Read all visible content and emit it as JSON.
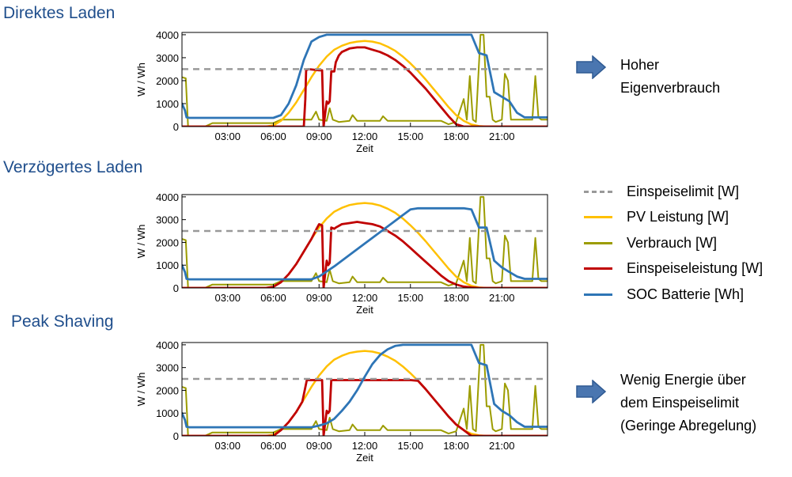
{
  "colors": {
    "limit": "#999999",
    "pv": "#ffc000",
    "consumption": "#9c9c00",
    "feed_in": "#c00000",
    "soc": "#2e75b6",
    "title": "#1f4e8c",
    "arrow": "#4a76b0"
  },
  "legend": [
    {
      "key": "limit",
      "label": "Einspeiselimit [W]",
      "style": "dashed"
    },
    {
      "key": "pv",
      "label": "PV Leistung [W]",
      "style": "solid"
    },
    {
      "key": "consumption",
      "label": "Verbrauch [W]",
      "style": "solid"
    },
    {
      "key": "feed_in",
      "label": "Einspeiseleistung [W]",
      "style": "solid"
    },
    {
      "key": "soc",
      "label": "SOC Batterie [Wh]",
      "style": "solid"
    }
  ],
  "notes": [
    {
      "lines": [
        "Hoher",
        "Eigenverbrauch"
      ],
      "icon": "arrow-right-icon"
    },
    {
      "lines": [
        "Wenig Energie über",
        "dem Einspeiselimit",
        "(Geringe Abregelung)"
      ],
      "icon": "arrow-right-icon"
    }
  ],
  "chart_data": [
    {
      "type": "line",
      "title": "Direktes Laden",
      "xlabel": "Zeit",
      "ylabel": "W / Wh",
      "xlim": [
        0,
        24
      ],
      "ylim": [
        0,
        4100
      ],
      "x_ticks": [
        "03:00",
        "06:00",
        "09:00",
        "12:00",
        "15:00",
        "18:00",
        "21:00"
      ],
      "y_ticks": [
        0,
        1000,
        2000,
        3000,
        4000
      ],
      "grid": false,
      "series": [
        {
          "name": "Einspeiselimit [W]",
          "key": "limit",
          "x": [
            0,
            24
          ],
          "y": [
            2500,
            2500
          ]
        },
        {
          "name": "PV Leistung [W]",
          "key": "pv",
          "x": [
            0,
            5.5,
            6.0,
            6.5,
            7.0,
            7.5,
            8.0,
            8.5,
            9.0,
            9.5,
            10.0,
            10.5,
            11.0,
            11.5,
            12.0,
            12.5,
            13.0,
            13.5,
            14.0,
            14.5,
            15.0,
            15.5,
            16.0,
            16.5,
            17.0,
            17.5,
            18.0,
            18.5,
            19.0,
            19.5,
            20.0,
            24
          ],
          "y": [
            0,
            0,
            50,
            250,
            600,
            1050,
            1600,
            2150,
            2650,
            3050,
            3350,
            3520,
            3640,
            3700,
            3730,
            3700,
            3620,
            3480,
            3300,
            3050,
            2750,
            2420,
            2050,
            1650,
            1250,
            850,
            500,
            250,
            90,
            20,
            0,
            0
          ]
        },
        {
          "name": "Verbrauch [W]",
          "key": "consumption",
          "x": [
            0,
            0.25,
            0.4,
            0.5,
            1.5,
            2.0,
            2.5,
            6.0,
            6.5,
            8.5,
            8.8,
            9.0,
            9.2,
            9.5,
            9.7,
            9.9,
            10.1,
            10.3,
            11.0,
            11.2,
            11.5,
            12.0,
            13.0,
            13.2,
            13.5,
            14.5,
            15.0,
            16.0,
            17.0,
            17.5,
            18.0,
            18.5,
            18.7,
            18.9,
            19.1,
            19.3,
            19.6,
            19.8,
            20.0,
            20.2,
            20.4,
            20.6,
            21.0,
            21.2,
            21.4,
            21.6,
            21.8,
            22.0,
            22.5,
            23.0,
            23.2,
            23.4,
            23.6,
            24
          ],
          "y": [
            2150,
            2100,
            0,
            0,
            0,
            150,
            150,
            150,
            300,
            300,
            650,
            300,
            280,
            250,
            800,
            300,
            250,
            200,
            250,
            500,
            250,
            250,
            250,
            450,
            250,
            250,
            250,
            250,
            250,
            100,
            200,
            1200,
            300,
            2200,
            300,
            200,
            4000,
            4000,
            1300,
            1300,
            300,
            200,
            300,
            2300,
            2000,
            300,
            300,
            300,
            300,
            300,
            2200,
            400,
            300,
            300
          ]
        },
        {
          "name": "Einspeiseleistung [W]",
          "key": "feed_in",
          "x": [
            0,
            8.0,
            8.1,
            8.15,
            8.3,
            9.0,
            9.2,
            9.3,
            9.5,
            9.6,
            9.7,
            9.8,
            10.0,
            10.1,
            10.3,
            10.5,
            11.0,
            11.5,
            12.0,
            12.5,
            13.0,
            13.5,
            14.0,
            14.5,
            15.0,
            15.5,
            16.0,
            16.5,
            17.0,
            17.5,
            18.0,
            18.5,
            24
          ],
          "y": [
            0,
            0,
            1200,
            2450,
            2500,
            2450,
            2450,
            0,
            1100,
            1000,
            1100,
            2400,
            2400,
            2800,
            3100,
            3250,
            3400,
            3450,
            3450,
            3350,
            3250,
            3100,
            2900,
            2650,
            2350,
            2000,
            1650,
            1250,
            850,
            450,
            100,
            0,
            0
          ]
        },
        {
          "name": "SOC Batterie [Wh]",
          "key": "soc",
          "x": [
            0,
            0.2,
            0.3,
            0.5,
            6.0,
            6.5,
            7.0,
            7.5,
            8.0,
            8.5,
            9.0,
            9.5,
            10.0,
            19.0,
            19.5,
            20.0,
            20.5,
            21.0,
            21.5,
            22.0,
            22.5,
            24
          ],
          "y": [
            1000,
            700,
            400,
            380,
            380,
            500,
            1000,
            1800,
            2900,
            3700,
            3900,
            4000,
            4000,
            4000,
            3200,
            3100,
            1500,
            1300,
            1100,
            600,
            400,
            400
          ]
        }
      ]
    },
    {
      "type": "line",
      "title": "Verzögertes Laden",
      "xlabel": "Zeit",
      "ylabel": "W / Wh",
      "xlim": [
        0,
        24
      ],
      "ylim": [
        0,
        4100
      ],
      "x_ticks": [
        "03:00",
        "06:00",
        "09:00",
        "12:00",
        "15:00",
        "18:00",
        "21:00"
      ],
      "y_ticks": [
        0,
        1000,
        2000,
        3000,
        4000
      ],
      "grid": false,
      "series": [
        {
          "name": "Einspeiselimit [W]",
          "key": "limit",
          "x": [
            0,
            24
          ],
          "y": [
            2500,
            2500
          ]
        },
        {
          "name": "PV Leistung [W]",
          "key": "pv",
          "x": [
            0,
            5.5,
            6.0,
            6.5,
            7.0,
            7.5,
            8.0,
            8.5,
            9.0,
            9.5,
            10.0,
            10.5,
            11.0,
            11.5,
            12.0,
            12.5,
            13.0,
            13.5,
            14.0,
            14.5,
            15.0,
            15.5,
            16.0,
            16.5,
            17.0,
            17.5,
            18.0,
            18.5,
            19.0,
            19.5,
            20.0,
            24
          ],
          "y": [
            0,
            0,
            50,
            250,
            600,
            1050,
            1600,
            2150,
            2650,
            3050,
            3350,
            3520,
            3640,
            3700,
            3730,
            3700,
            3620,
            3480,
            3300,
            3050,
            2750,
            2420,
            2050,
            1650,
            1250,
            850,
            500,
            250,
            90,
            20,
            0,
            0
          ]
        },
        {
          "name": "Verbrauch [W]",
          "key": "consumption",
          "x": [
            0,
            0.25,
            0.4,
            0.5,
            1.5,
            2.0,
            2.5,
            6.0,
            6.5,
            8.5,
            8.8,
            9.0,
            9.2,
            9.5,
            9.7,
            9.9,
            10.1,
            10.3,
            11.0,
            11.2,
            11.5,
            12.0,
            13.0,
            13.2,
            13.5,
            14.5,
            15.0,
            16.0,
            17.0,
            17.5,
            18.0,
            18.5,
            18.7,
            18.9,
            19.1,
            19.3,
            19.6,
            19.8,
            20.0,
            20.2,
            20.4,
            20.6,
            21.0,
            21.2,
            21.4,
            21.6,
            21.8,
            22.0,
            22.5,
            23.0,
            23.2,
            23.4,
            23.6,
            24
          ],
          "y": [
            2150,
            2100,
            0,
            0,
            0,
            150,
            150,
            150,
            300,
            300,
            650,
            300,
            280,
            250,
            800,
            300,
            250,
            200,
            250,
            500,
            250,
            250,
            250,
            450,
            250,
            250,
            250,
            250,
            250,
            100,
            200,
            1200,
            300,
            2200,
            300,
            200,
            4000,
            4000,
            1300,
            1300,
            300,
            200,
            300,
            2300,
            2000,
            300,
            300,
            300,
            300,
            300,
            2200,
            400,
            300,
            300
          ]
        },
        {
          "name": "Einspeiseleistung [W]",
          "key": "feed_in",
          "x": [
            0,
            5.5,
            6.0,
            6.5,
            7.0,
            7.5,
            8.0,
            8.5,
            8.8,
            9.0,
            9.2,
            9.3,
            9.5,
            9.6,
            9.7,
            9.8,
            10.0,
            10.1,
            10.5,
            11.0,
            11.5,
            12.0,
            12.5,
            13.0,
            13.5,
            14.0,
            14.5,
            15.0,
            15.5,
            16.0,
            16.5,
            17.0,
            17.5,
            18.0,
            18.5,
            19.0,
            19.5,
            24
          ],
          "y": [
            0,
            0,
            50,
            250,
            600,
            1050,
            1600,
            2150,
            2550,
            2800,
            2750,
            0,
            1200,
            1000,
            1100,
            2650,
            2600,
            2650,
            2800,
            2850,
            2900,
            2850,
            2800,
            2700,
            2500,
            2300,
            2050,
            1750,
            1450,
            1150,
            850,
            550,
            300,
            150,
            60,
            20,
            0,
            0
          ]
        },
        {
          "name": "SOC Batterie [Wh]",
          "key": "soc",
          "x": [
            0,
            0.2,
            0.3,
            0.5,
            8.5,
            9.0,
            10.0,
            11.0,
            12.0,
            13.0,
            14.0,
            15.0,
            15.5,
            18.5,
            19.0,
            19.5,
            20.0,
            20.5,
            21.0,
            21.5,
            22.0,
            22.5,
            24
          ],
          "y": [
            1000,
            700,
            400,
            380,
            380,
            500,
            950,
            1450,
            1950,
            2450,
            2950,
            3450,
            3500,
            3500,
            3450,
            2650,
            2650,
            1200,
            900,
            700,
            500,
            400,
            400
          ]
        }
      ]
    },
    {
      "type": "line",
      "title": "Peak Shaving",
      "xlabel": "Zeit",
      "ylabel": "W / Wh",
      "xlim": [
        0,
        24
      ],
      "ylim": [
        0,
        4100
      ],
      "x_ticks": [
        "03:00",
        "06:00",
        "09:00",
        "12:00",
        "15:00",
        "18:00",
        "21:00"
      ],
      "y_ticks": [
        0,
        1000,
        2000,
        3000,
        4000
      ],
      "grid": false,
      "series": [
        {
          "name": "Einspeiselimit [W]",
          "key": "limit",
          "x": [
            0,
            24
          ],
          "y": [
            2500,
            2500
          ]
        },
        {
          "name": "PV Leistung [W]",
          "key": "pv",
          "x": [
            0,
            5.5,
            6.0,
            6.5,
            7.0,
            7.5,
            8.0,
            8.5,
            9.0,
            9.5,
            10.0,
            10.5,
            11.0,
            11.5,
            12.0,
            12.5,
            13.0,
            13.5,
            14.0,
            14.5,
            15.0,
            15.5,
            16.0,
            16.5,
            17.0,
            17.5,
            18.0,
            18.5,
            19.0,
            19.5,
            20.0,
            24
          ],
          "y": [
            0,
            0,
            50,
            250,
            600,
            1050,
            1600,
            2150,
            2650,
            3050,
            3350,
            3520,
            3640,
            3700,
            3730,
            3700,
            3620,
            3480,
            3300,
            3050,
            2750,
            2420,
            2050,
            1650,
            1250,
            850,
            500,
            250,
            90,
            20,
            0,
            0
          ]
        },
        {
          "name": "Verbrauch [W]",
          "key": "consumption",
          "x": [
            0,
            0.25,
            0.4,
            0.5,
            1.5,
            2.0,
            2.5,
            6.0,
            6.5,
            8.5,
            8.8,
            9.0,
            9.2,
            9.5,
            9.7,
            9.9,
            10.1,
            10.3,
            11.0,
            11.2,
            11.5,
            12.0,
            13.0,
            13.2,
            13.5,
            14.5,
            15.0,
            16.0,
            17.0,
            17.5,
            18.0,
            18.5,
            18.7,
            18.9,
            19.1,
            19.3,
            19.6,
            19.8,
            20.0,
            20.2,
            20.4,
            20.6,
            21.0,
            21.2,
            21.4,
            21.6,
            21.8,
            22.0,
            22.5,
            23.0,
            23.2,
            23.4,
            23.6,
            24
          ],
          "y": [
            2150,
            2100,
            0,
            0,
            0,
            150,
            150,
            150,
            300,
            300,
            650,
            300,
            280,
            250,
            800,
            300,
            250,
            200,
            250,
            500,
            250,
            250,
            250,
            450,
            250,
            250,
            250,
            250,
            250,
            100,
            200,
            1200,
            300,
            2200,
            300,
            200,
            4000,
            4000,
            1300,
            1300,
            300,
            200,
            300,
            2300,
            2000,
            300,
            300,
            300,
            300,
            300,
            2200,
            400,
            300,
            300
          ]
        },
        {
          "name": "Einspeiseleistung [W]",
          "key": "feed_in",
          "x": [
            0,
            6.0,
            6.5,
            7.0,
            7.5,
            7.9,
            8.2,
            9.0,
            9.2,
            9.3,
            9.5,
            9.6,
            9.7,
            9.8,
            10.0,
            10.2,
            11.0,
            12.0,
            13.0,
            14.0,
            14.5,
            15.0,
            15.5,
            16.0,
            16.5,
            17.0,
            17.5,
            18.0,
            18.5,
            19.0,
            24
          ],
          "y": [
            0,
            0,
            250,
            600,
            1050,
            1500,
            2450,
            2450,
            2450,
            0,
            1100,
            1000,
            1100,
            2450,
            2450,
            2450,
            2450,
            2450,
            2450,
            2450,
            2450,
            2450,
            2420,
            2050,
            1650,
            1250,
            850,
            500,
            250,
            0,
            0
          ]
        },
        {
          "name": "SOC Batterie [Wh]",
          "key": "soc",
          "x": [
            0,
            0.2,
            0.3,
            0.5,
            8.5,
            9.0,
            9.5,
            10.0,
            10.5,
            11.0,
            11.5,
            12.0,
            12.5,
            13.0,
            13.5,
            14.0,
            14.5,
            15.0,
            19.0,
            19.5,
            20.0,
            20.5,
            21.0,
            21.5,
            22.0,
            22.5,
            24
          ],
          "y": [
            1000,
            700,
            400,
            380,
            380,
            450,
            550,
            750,
            1100,
            1500,
            2000,
            2600,
            3150,
            3550,
            3800,
            3950,
            4000,
            4000,
            4000,
            3200,
            3100,
            1400,
            1100,
            900,
            600,
            400,
            400
          ]
        }
      ]
    }
  ]
}
